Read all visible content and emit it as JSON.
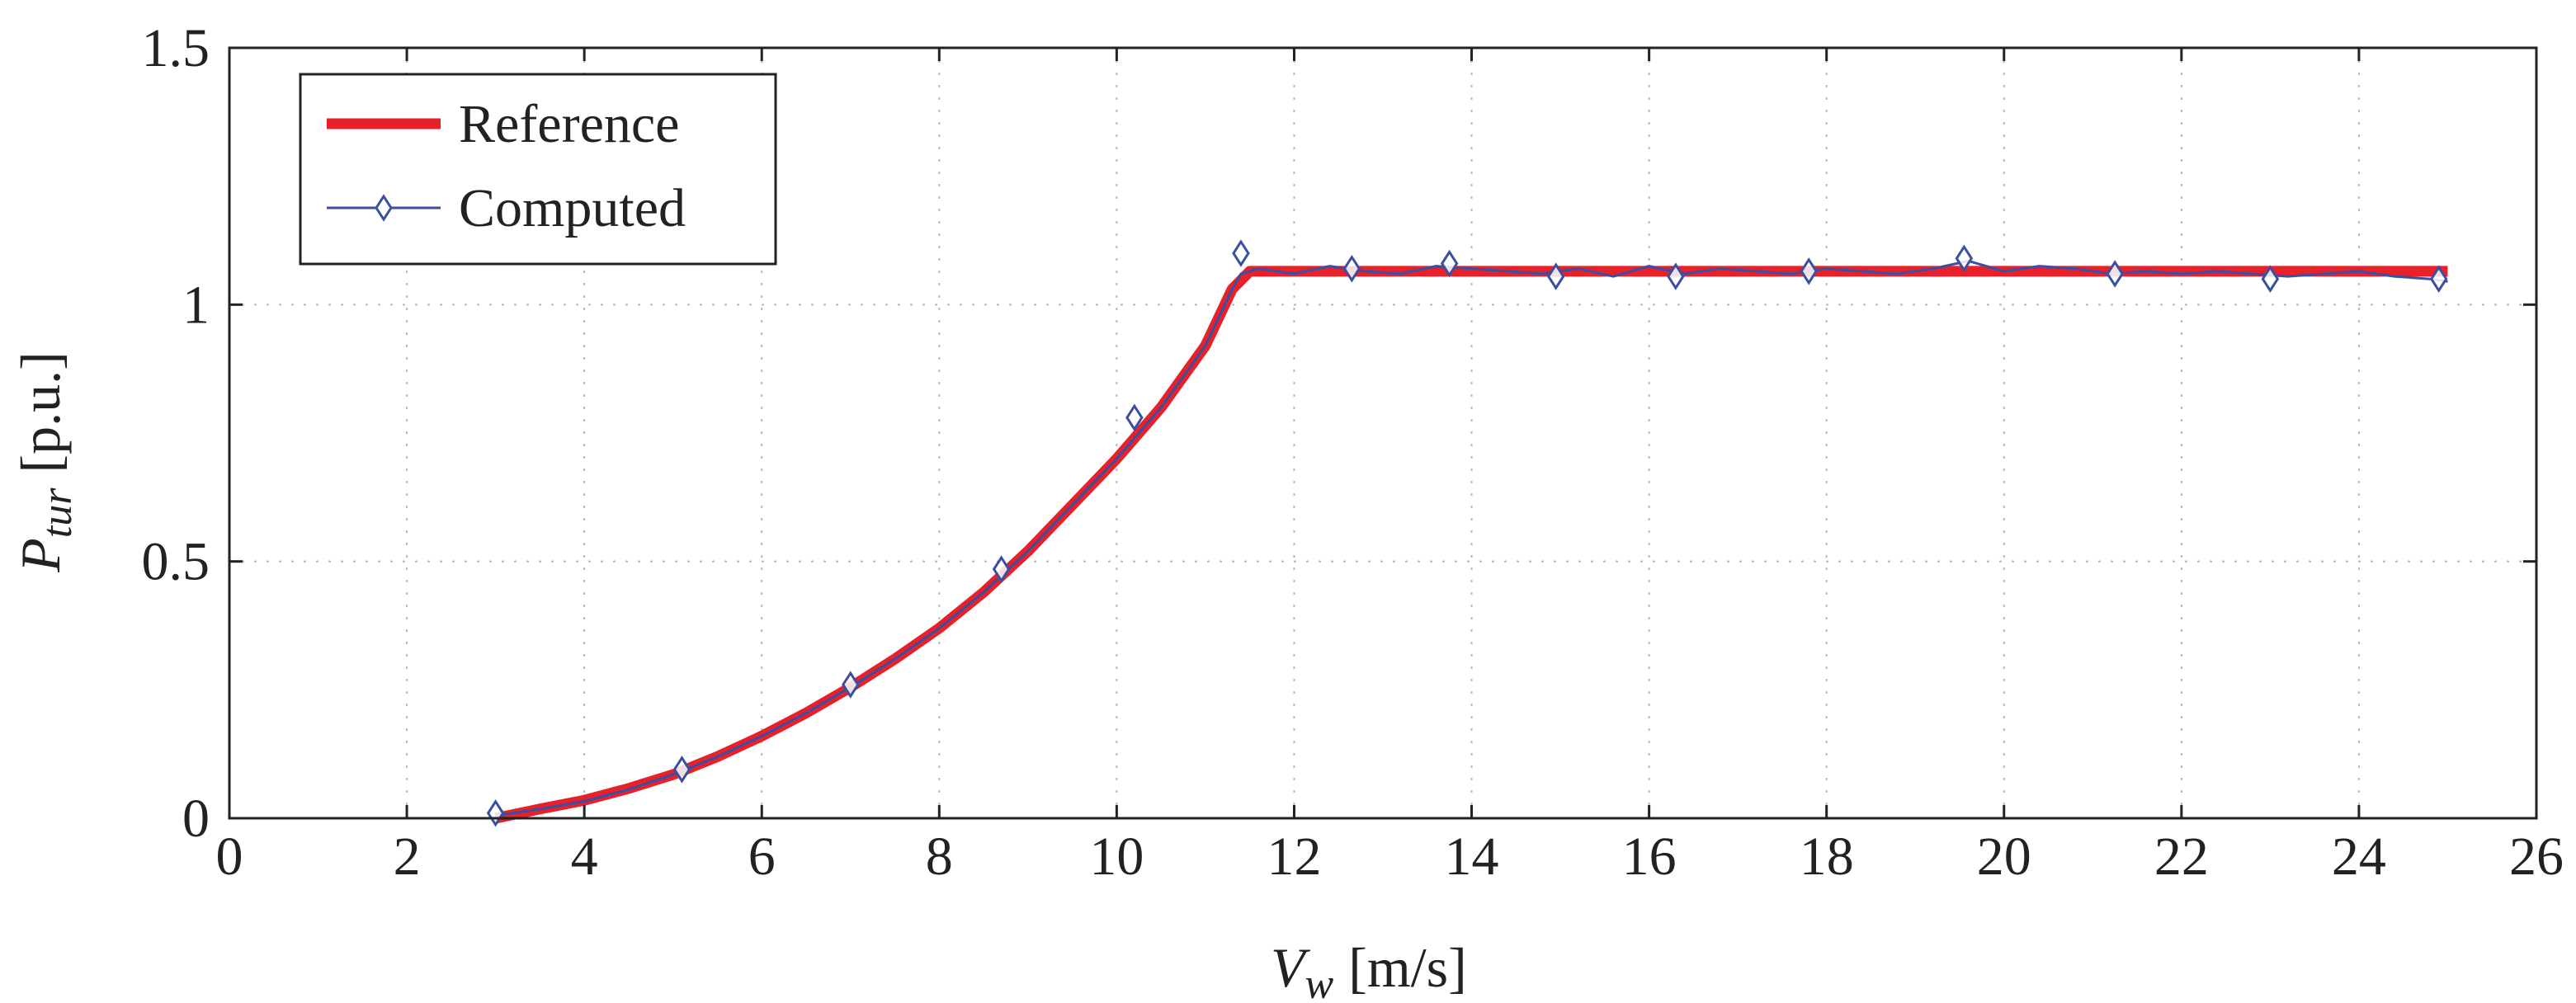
{
  "chart_data": {
    "type": "line",
    "title": "",
    "xlabel": {
      "symbol": "V",
      "subscript": "w",
      "unit": "[m/s]"
    },
    "ylabel": {
      "symbol": "P",
      "subscript": "tur",
      "unit": "[p.u.]"
    },
    "xlim": [
      0,
      26
    ],
    "ylim": [
      0,
      1.5
    ],
    "xticks": [
      0,
      2,
      4,
      6,
      8,
      10,
      12,
      14,
      16,
      18,
      20,
      22,
      24,
      26
    ],
    "yticks": [
      0,
      0.5,
      1,
      1.5
    ],
    "xtick_labels": [
      "0",
      "2",
      "4",
      "6",
      "8",
      "10",
      "12",
      "14",
      "16",
      "18",
      "20",
      "22",
      "24",
      "26"
    ],
    "ytick_labels": [
      "0",
      "0.5",
      "1",
      "1.5"
    ],
    "grid": true,
    "legend_position": "top-left",
    "series": [
      {
        "name": "Reference",
        "color": "#e8202a",
        "marker": "none",
        "x": [
          3,
          3.5,
          4,
          4.5,
          5,
          5.5,
          6,
          6.5,
          7,
          7.5,
          8,
          8.5,
          9,
          9.5,
          10,
          10.5,
          11,
          11.3,
          11.5,
          12,
          13,
          14,
          15,
          16,
          17,
          18,
          19,
          20,
          21,
          22,
          23,
          24,
          25
        ],
        "values": [
          0.0,
          0.018,
          0.035,
          0.058,
          0.085,
          0.12,
          0.16,
          0.205,
          0.255,
          0.31,
          0.37,
          0.44,
          0.52,
          0.61,
          0.7,
          0.8,
          0.92,
          1.03,
          1.065,
          1.065,
          1.065,
          1.065,
          1.065,
          1.065,
          1.065,
          1.065,
          1.065,
          1.065,
          1.065,
          1.065,
          1.065,
          1.065,
          1.065
        ]
      },
      {
        "name": "Computed",
        "color": "#3a4fa0",
        "marker": "diamond",
        "x": [
          3,
          3.5,
          4,
          4.5,
          5,
          5.5,
          6,
          6.5,
          7,
          7.5,
          8,
          8.5,
          9,
          9.5,
          10,
          10.5,
          11,
          11.3,
          11.4,
          11.6,
          12,
          12.4,
          12.8,
          13.2,
          13.6,
          14,
          14.4,
          14.8,
          15.2,
          15.6,
          16,
          16.4,
          16.8,
          17.2,
          17.6,
          18,
          18.4,
          18.8,
          19.2,
          19.6,
          20,
          20.4,
          20.8,
          21.2,
          21.6,
          22,
          22.4,
          22.8,
          23.2,
          23.6,
          24,
          24.4,
          24.8,
          25
        ],
        "values": [
          0.005,
          0.018,
          0.033,
          0.056,
          0.085,
          0.12,
          0.16,
          0.205,
          0.255,
          0.31,
          0.37,
          0.44,
          0.52,
          0.61,
          0.7,
          0.8,
          0.92,
          1.03,
          1.06,
          1.07,
          1.06,
          1.075,
          1.065,
          1.06,
          1.075,
          1.07,
          1.065,
          1.06,
          1.07,
          1.055,
          1.075,
          1.06,
          1.07,
          1.065,
          1.06,
          1.07,
          1.065,
          1.06,
          1.07,
          1.085,
          1.065,
          1.075,
          1.07,
          1.06,
          1.065,
          1.06,
          1.065,
          1.06,
          1.055,
          1.06,
          1.065,
          1.055,
          1.05,
          1.045
        ],
        "marker_x": [
          3,
          5.1,
          7.0,
          8.7,
          10.2,
          11.4,
          12.65,
          13.75,
          14.95,
          16.3,
          17.8,
          19.55,
          21.25,
          23.0,
          24.9
        ],
        "marker_values": [
          0.01,
          0.095,
          0.26,
          0.485,
          0.78,
          1.1,
          1.07,
          1.08,
          1.055,
          1.055,
          1.065,
          1.09,
          1.06,
          1.05,
          1.05
        ]
      }
    ]
  }
}
